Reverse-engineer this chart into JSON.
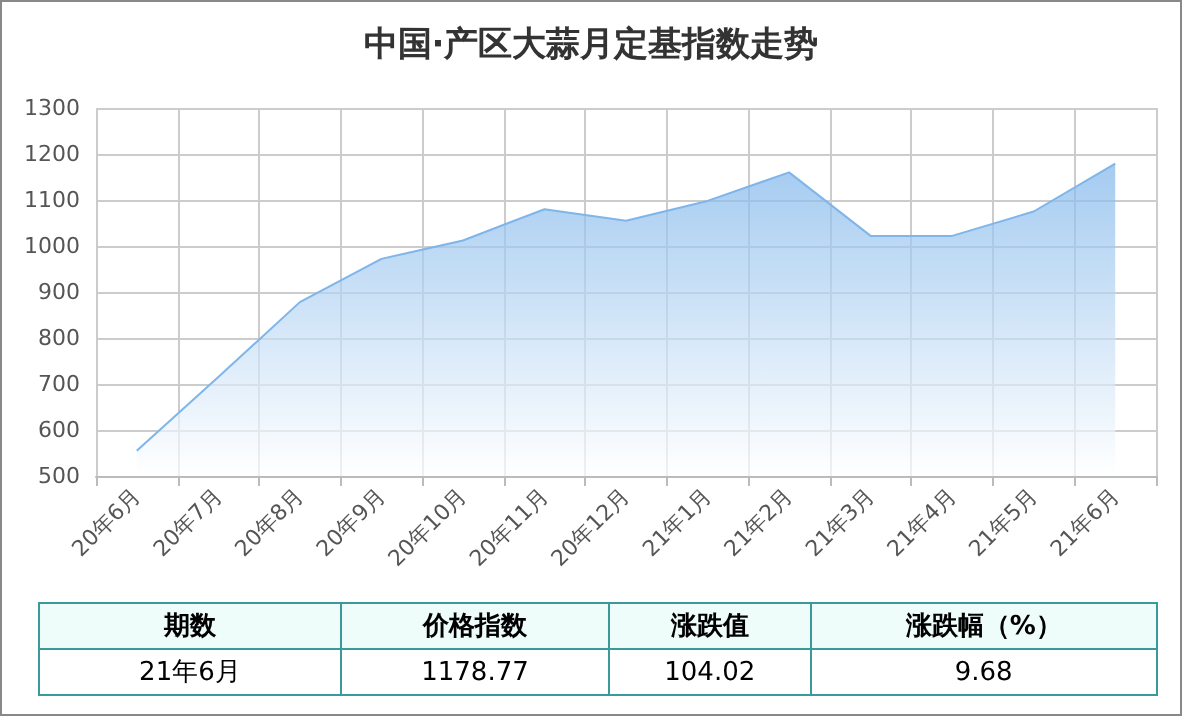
{
  "chart_data": {
    "type": "area",
    "title": "中国·产区大蒜月定基指数走势",
    "categories": [
      "20年6月",
      "20年7月",
      "20年8月",
      "20年9月",
      "20年10月",
      "20年11月",
      "20年12月",
      "21年1月",
      "21年2月",
      "21年3月",
      "21年4月",
      "21年5月",
      "21年6月"
    ],
    "series": [
      {
        "color": "#7eb5ea",
        "values": [
          555,
          715,
          878,
          972,
          1012,
          1080,
          1055,
          1098,
          1160,
          1022,
          1022,
          1075,
          1179
        ]
      }
    ],
    "ylim": [
      500,
      1300
    ],
    "yticks": [
      500,
      600,
      700,
      800,
      900,
      1000,
      1100,
      1200,
      1300
    ],
    "grid": true,
    "marker": "none",
    "annotations": [
      "期数",
      "价格指数",
      "涨跌值",
      "涨跌幅（%）",
      "21年6月",
      "1178.77",
      "104.02",
      "9.68"
    ]
  }
}
